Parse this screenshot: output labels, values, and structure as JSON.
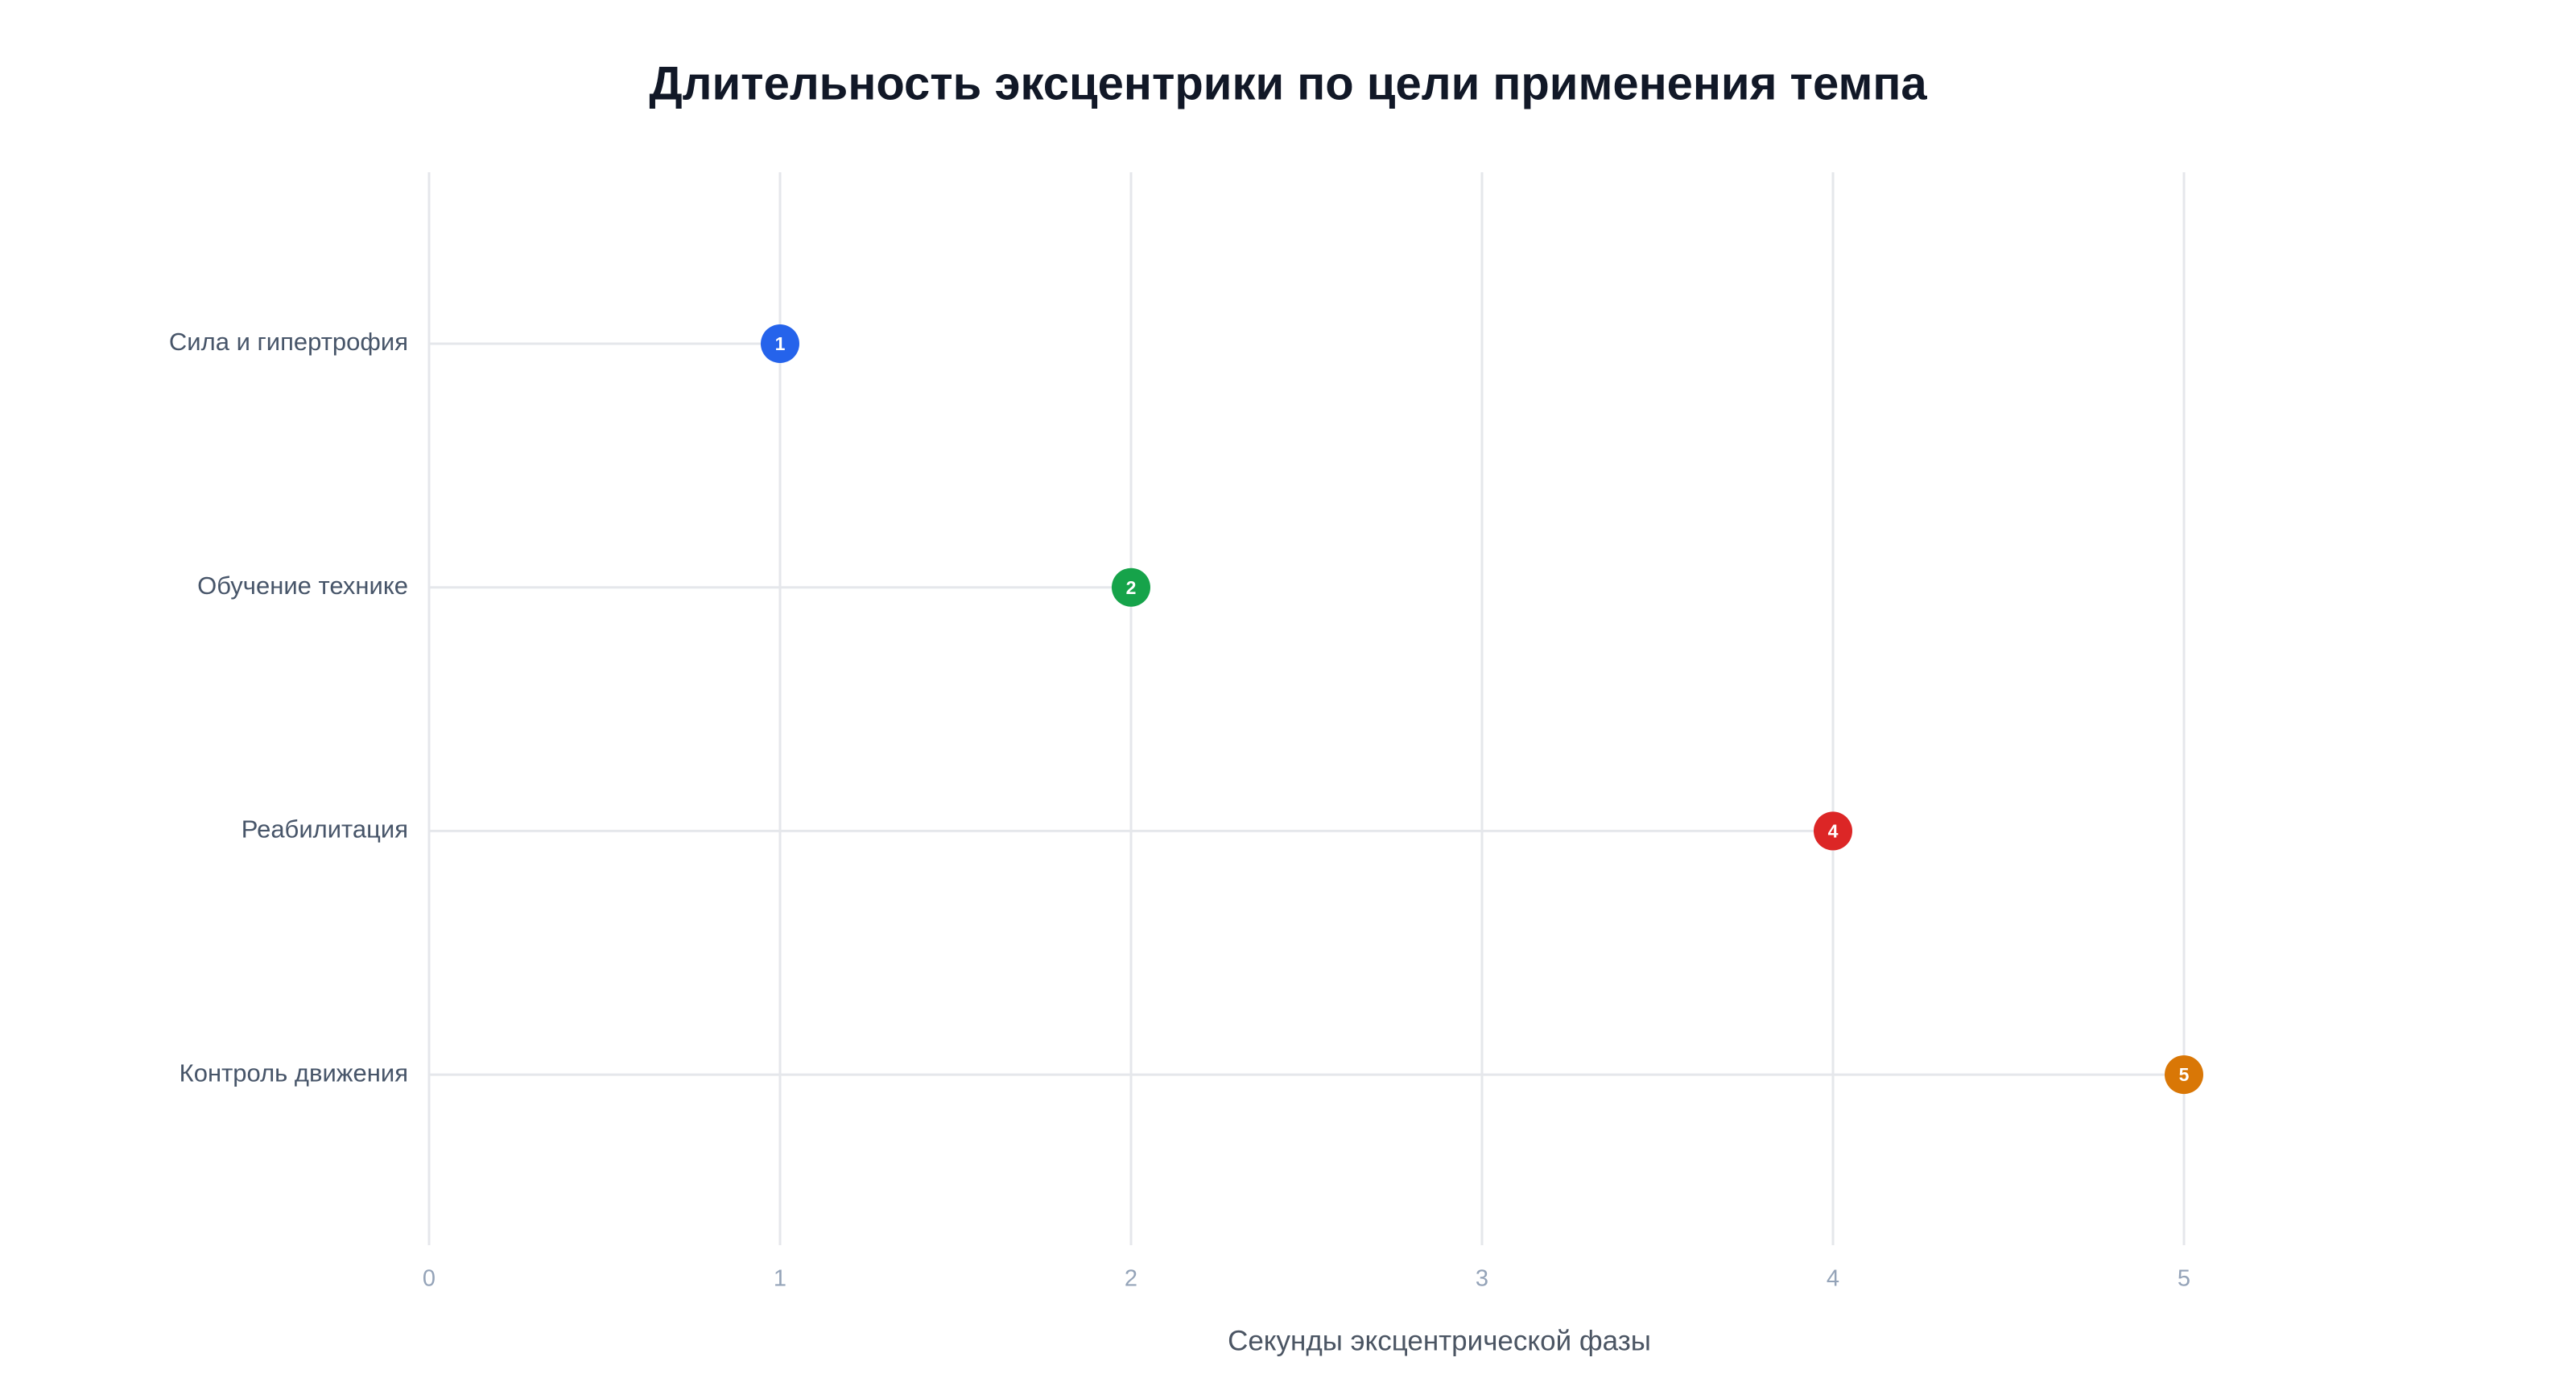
{
  "chart_data": {
    "type": "lollipop",
    "title": "Длительность эксцентрики по цели применения темпа",
    "x_label": "Секунды эксцентрической фазы",
    "categories": [
      "Сила и гипертрофия",
      "Обучение технике",
      "Реабилитация",
      "Контроль движения"
    ],
    "values": [
      1,
      2,
      4,
      5
    ],
    "colors": [
      "#2563eb",
      "#16a34a",
      "#dc2626",
      "#d97706"
    ],
    "xlim": [
      0,
      5.5
    ],
    "xticks": [
      0,
      1,
      2,
      3,
      4,
      5
    ],
    "grid": true
  }
}
